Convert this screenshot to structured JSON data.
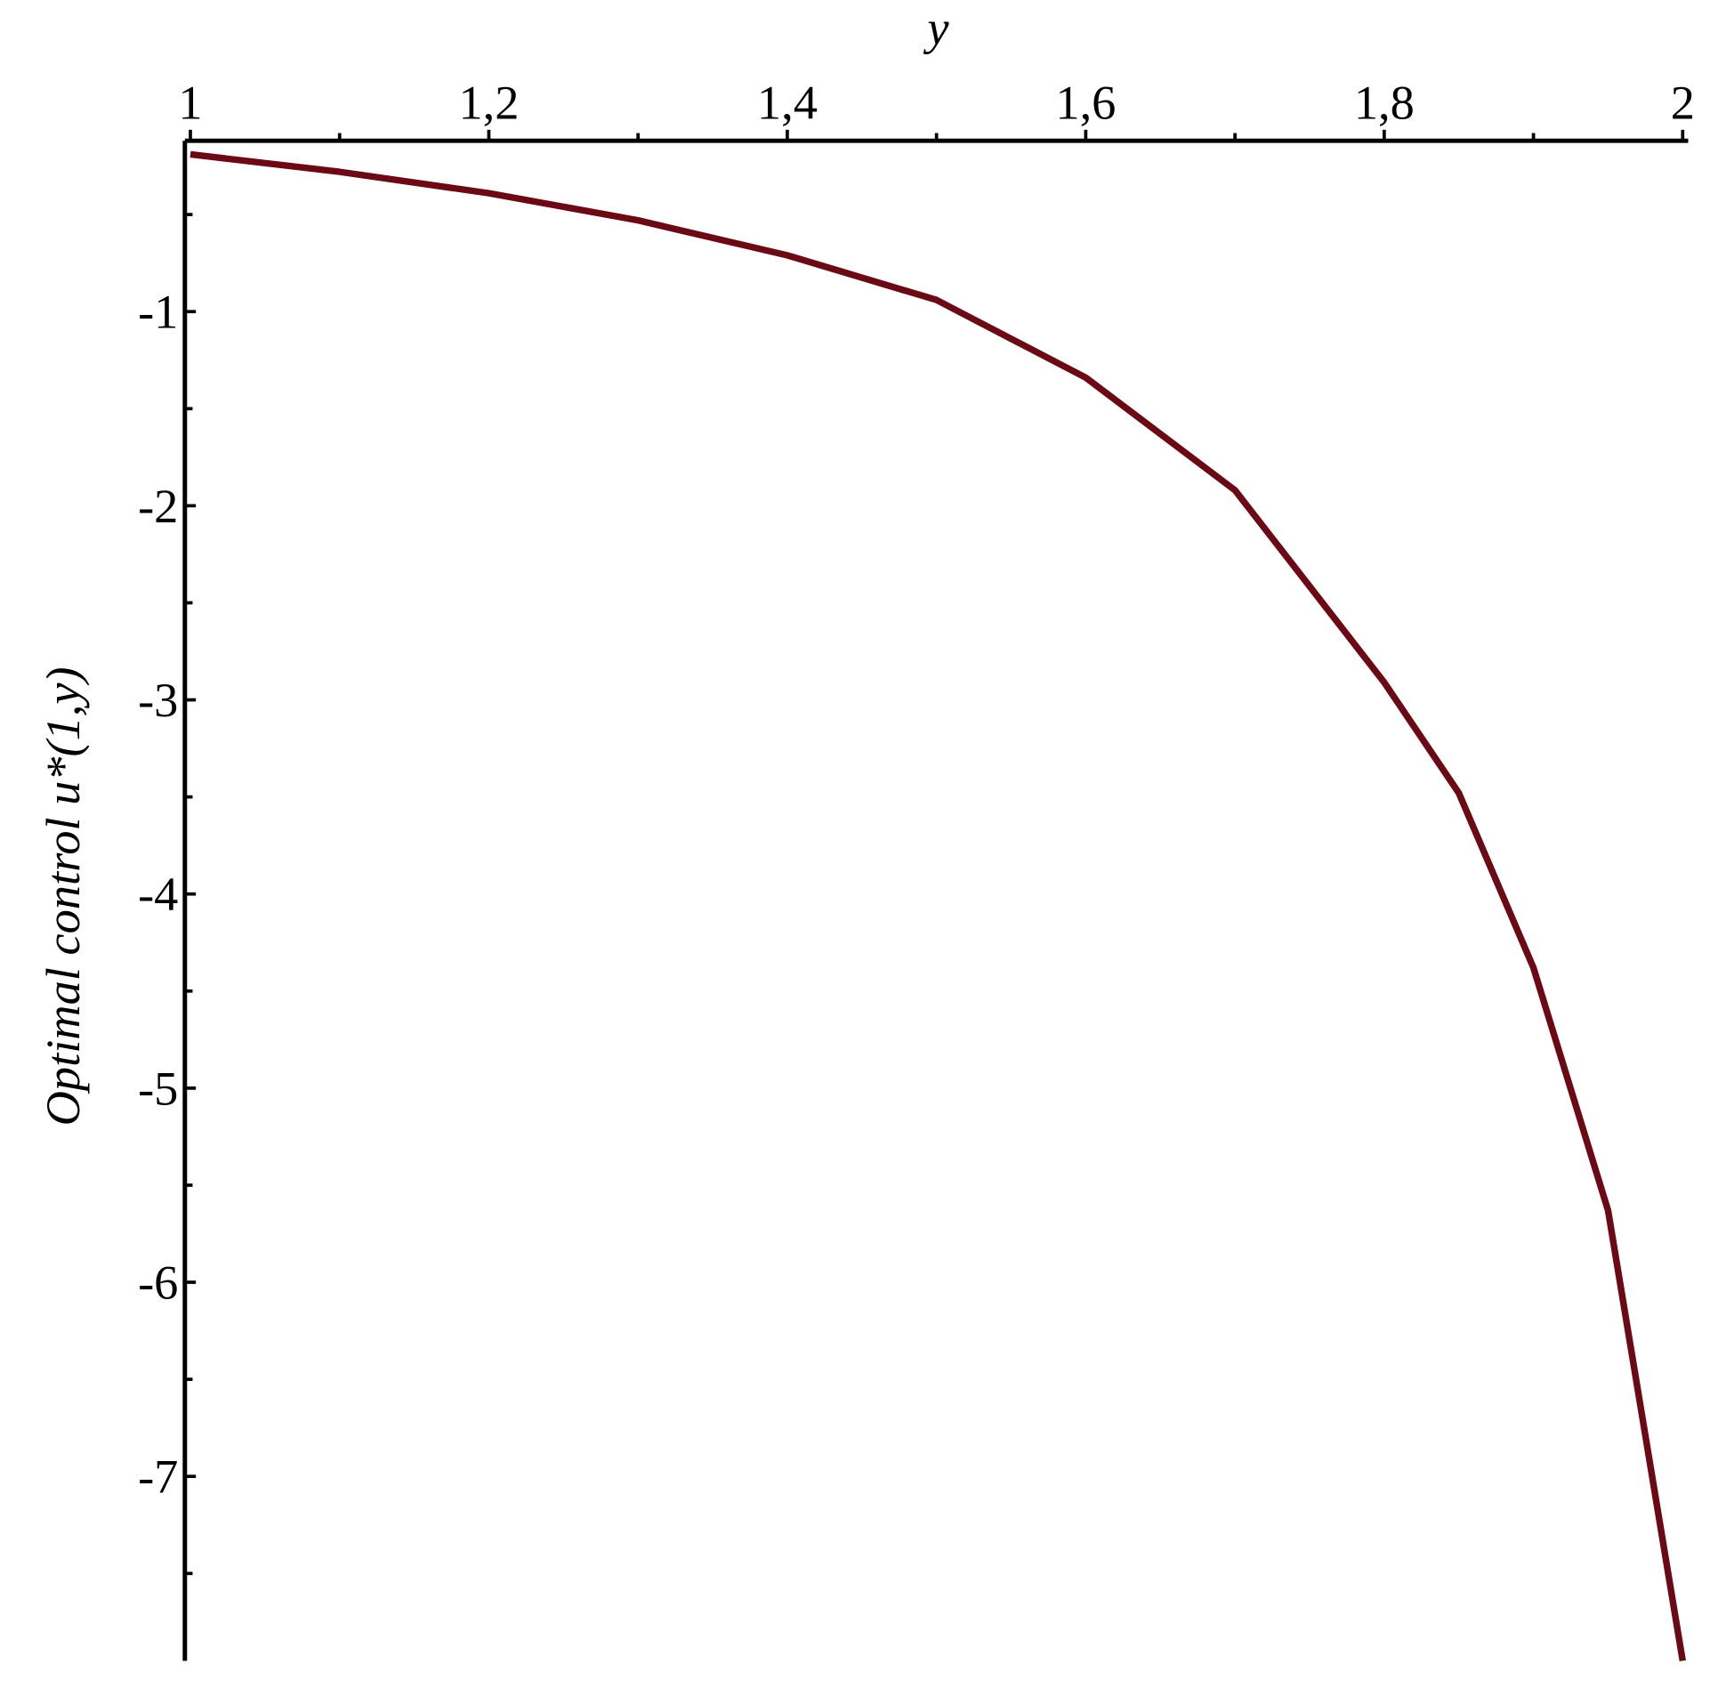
{
  "chart_data": {
    "type": "line",
    "x_label": "y",
    "y_label": "Optimal control u*(1,y)",
    "x": [
      1.0,
      1.1,
      1.2,
      1.3,
      1.4,
      1.5,
      1.6,
      1.7,
      1.8,
      1.85,
      1.9,
      1.95,
      2.0
    ],
    "series": [
      {
        "color": "#6b0a14",
        "values": [
          -0.19,
          -0.28,
          -0.39,
          -0.53,
          -0.71,
          -0.94,
          -1.34,
          -1.92,
          -2.91,
          -3.48,
          -4.38,
          -5.63,
          -7.95
        ]
      }
    ],
    "xlim": [
      1,
      2
    ],
    "ylim": [
      -7.95,
      -0.12
    ],
    "xticks": [
      1,
      {
        "value": 1.2,
        "label": "1,2"
      },
      {
        "value": 1.4,
        "label": "1,4"
      },
      {
        "value": 1.6,
        "label": "1,6"
      },
      {
        "value": 1.8,
        "label": "1,8"
      },
      2
    ],
    "xminorticks": [
      1.1,
      1.3,
      1.5,
      1.7,
      1.9
    ],
    "yticks": [
      -1,
      -2,
      -3,
      -4,
      -5,
      -6,
      -7
    ],
    "yminorticks": [
      -0.5,
      -1.5,
      -2.5,
      -3.5,
      -4.5,
      -5.5,
      -6.5,
      -7.5
    ],
    "grid": false
  }
}
